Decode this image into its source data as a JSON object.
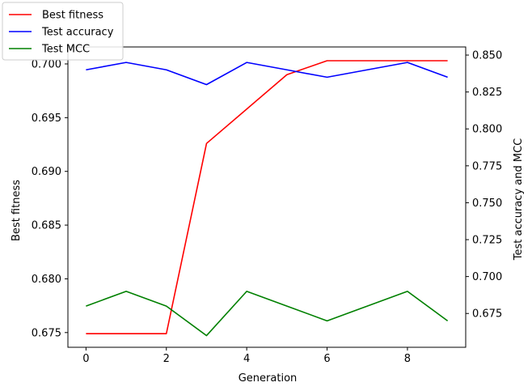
{
  "chart_data": {
    "type": "line",
    "x": [
      0,
      1,
      2,
      3,
      4,
      5,
      6,
      7,
      8,
      9
    ],
    "xlabel": "Generation",
    "ylabel_left": "Best fitness",
    "ylabel_right": "Test accuracy and MCC",
    "xlim": [
      -0.45,
      9.45
    ],
    "ylim_left": [
      0.67363,
      0.70158
    ],
    "ylim_right": [
      0.6521,
      0.8555
    ],
    "xticks": [
      0,
      2,
      4,
      6,
      8
    ],
    "yticks_left": [
      0.675,
      0.68,
      0.685,
      0.69,
      0.695,
      0.7
    ],
    "yticks_left_labels": [
      "0.675",
      "0.680",
      "0.685",
      "0.690",
      "0.695",
      "0.700"
    ],
    "yticks_right": [
      0.675,
      0.7,
      0.725,
      0.75,
      0.775,
      0.8,
      0.825,
      0.85
    ],
    "yticks_right_labels": [
      "0.675",
      "0.700",
      "0.725",
      "0.750",
      "0.775",
      "0.800",
      "0.825",
      "0.850"
    ],
    "grid": false,
    "legend_position": "top-left",
    "series": [
      {
        "name": "Best fitness",
        "axis": "left",
        "color": "#ff0000",
        "values": [
          0.6749,
          0.6749,
          0.6749,
          0.6926,
          0.6958,
          0.699,
          0.7003,
          0.7003,
          0.7003,
          0.7003
        ]
      },
      {
        "name": "Test accuracy",
        "axis": "right",
        "color": "#0000ff",
        "values": [
          0.84,
          0.845,
          0.84,
          0.83,
          0.845,
          0.84,
          0.835,
          0.84,
          0.845,
          0.835
        ]
      },
      {
        "name": "Test MCC",
        "axis": "right",
        "color": "#008000",
        "values": [
          0.68,
          0.69,
          0.68,
          0.66,
          0.69,
          0.68,
          0.67,
          0.68,
          0.69,
          0.67
        ]
      }
    ]
  }
}
